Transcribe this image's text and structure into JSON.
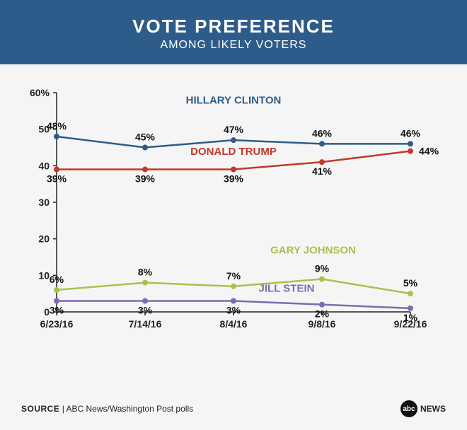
{
  "header": {
    "title": "VOTE PREFERENCE",
    "subtitle": "AMONG LIKELY VOTERS"
  },
  "chart": {
    "type": "line",
    "xlim": [
      0,
      4
    ],
    "ylim": [
      0,
      60
    ],
    "ytick_step": 10,
    "show_percent_on_top_y_only": true,
    "background_color": "#f5f5f5",
    "axis_color": "#222222",
    "grid": false,
    "x_categories": [
      "6/23/16",
      "7/14/16",
      "8/4/16",
      "9/8/16",
      "9/22/16"
    ],
    "series": [
      {
        "name": "HILLARY CLINTON",
        "color": "#2e5c8a",
        "values": [
          48,
          45,
          47,
          46,
          46
        ],
        "label_positions": [
          "above",
          "above",
          "above",
          "above",
          "above"
        ],
        "name_pos": {
          "x": 2,
          "y": 57
        }
      },
      {
        "name": "DONALD TRUMP",
        "color": "#c0392b",
        "values": [
          39,
          39,
          39,
          41,
          44
        ],
        "label_positions": [
          "below",
          "below",
          "below",
          "below",
          "right"
        ],
        "name_pos": {
          "x": 2,
          "y": 43
        }
      },
      {
        "name": "GARY JOHNSON",
        "color": "#a6c34c",
        "values": [
          6,
          8,
          7,
          9,
          5
        ],
        "label_positions": [
          "above",
          "above",
          "above",
          "above",
          "above"
        ],
        "name_pos": {
          "x": 2.9,
          "y": 16
        }
      },
      {
        "name": "JILL STEIN",
        "color": "#7e6bb0",
        "values": [
          3,
          3,
          3,
          2,
          1
        ],
        "label_positions": [
          "below",
          "below",
          "below",
          "below",
          "below"
        ],
        "name_pos": {
          "x": 2.6,
          "y": 5.5
        }
      }
    ],
    "marker_radius": 4,
    "line_width": 2.5,
    "label_fontsize": 14,
    "series_label_fontsize": 15,
    "axis_label_fontsize": 14
  },
  "footer": {
    "source_label": "SOURCE",
    "source_text": "ABC News/Washington Post polls",
    "logo_text": "NEWS",
    "logo_ball": "abc"
  }
}
